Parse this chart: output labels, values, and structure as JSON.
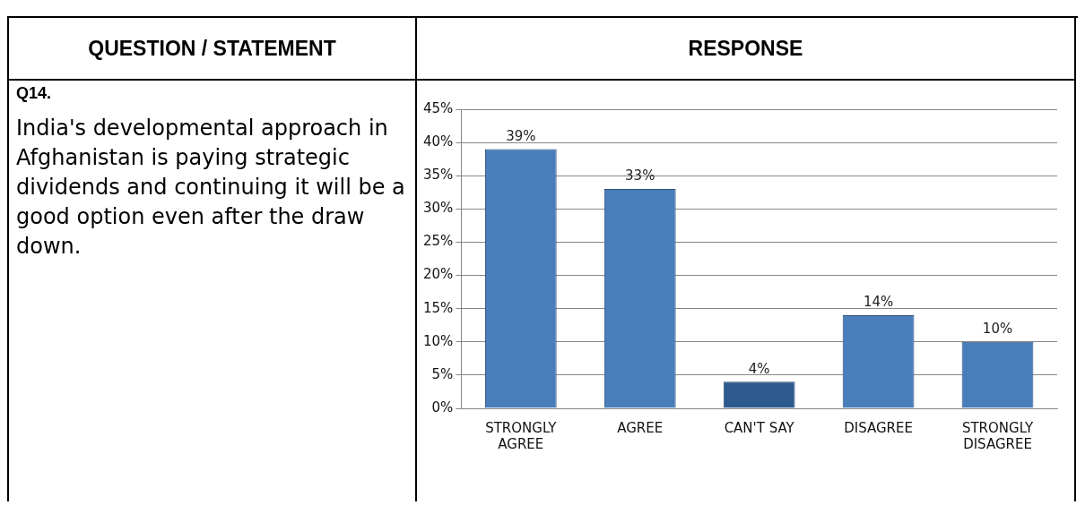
{
  "chart_data": [
    {
      "type": "other",
      "title": "QUESTION / STATEMENT",
      "annotations": [
        "Q14.",
        "India's developmental approach in Afghanistan is paying strategic dividends and continuing it will be a good option even after the draw down."
      ]
    },
    {
      "type": "bar",
      "title": "RESPONSE",
      "categories": [
        "STRONGLY AGREE",
        "AGREE",
        "CAN'T SAY",
        "DISAGREE",
        "STRONGLY DISAGREE"
      ],
      "values": [
        39,
        33,
        4,
        14,
        10
      ],
      "colors": [
        "#4a7ebb",
        "#4a7ebb",
        "#2c5a8f",
        "#4a7ebb",
        "#4a7ebb"
      ],
      "value_labels": [
        "39%",
        "33%",
        "4%",
        "14%",
        "10%"
      ],
      "ylim": [
        0,
        45
      ],
      "yticks": [
        {
          "value": 0,
          "label": "0%"
        },
        {
          "value": 5,
          "label": "5%"
        },
        {
          "value": 10,
          "label": "10%"
        },
        {
          "value": 15,
          "label": "15%"
        },
        {
          "value": 20,
          "label": "20%"
        },
        {
          "value": 25,
          "label": "25%"
        },
        {
          "value": 30,
          "label": "30%"
        },
        {
          "value": 35,
          "label": "35%"
        },
        {
          "value": 40,
          "label": "40%"
        },
        {
          "value": 45,
          "label": "45%"
        }
      ],
      "grid": "y",
      "legend": false
    }
  ]
}
